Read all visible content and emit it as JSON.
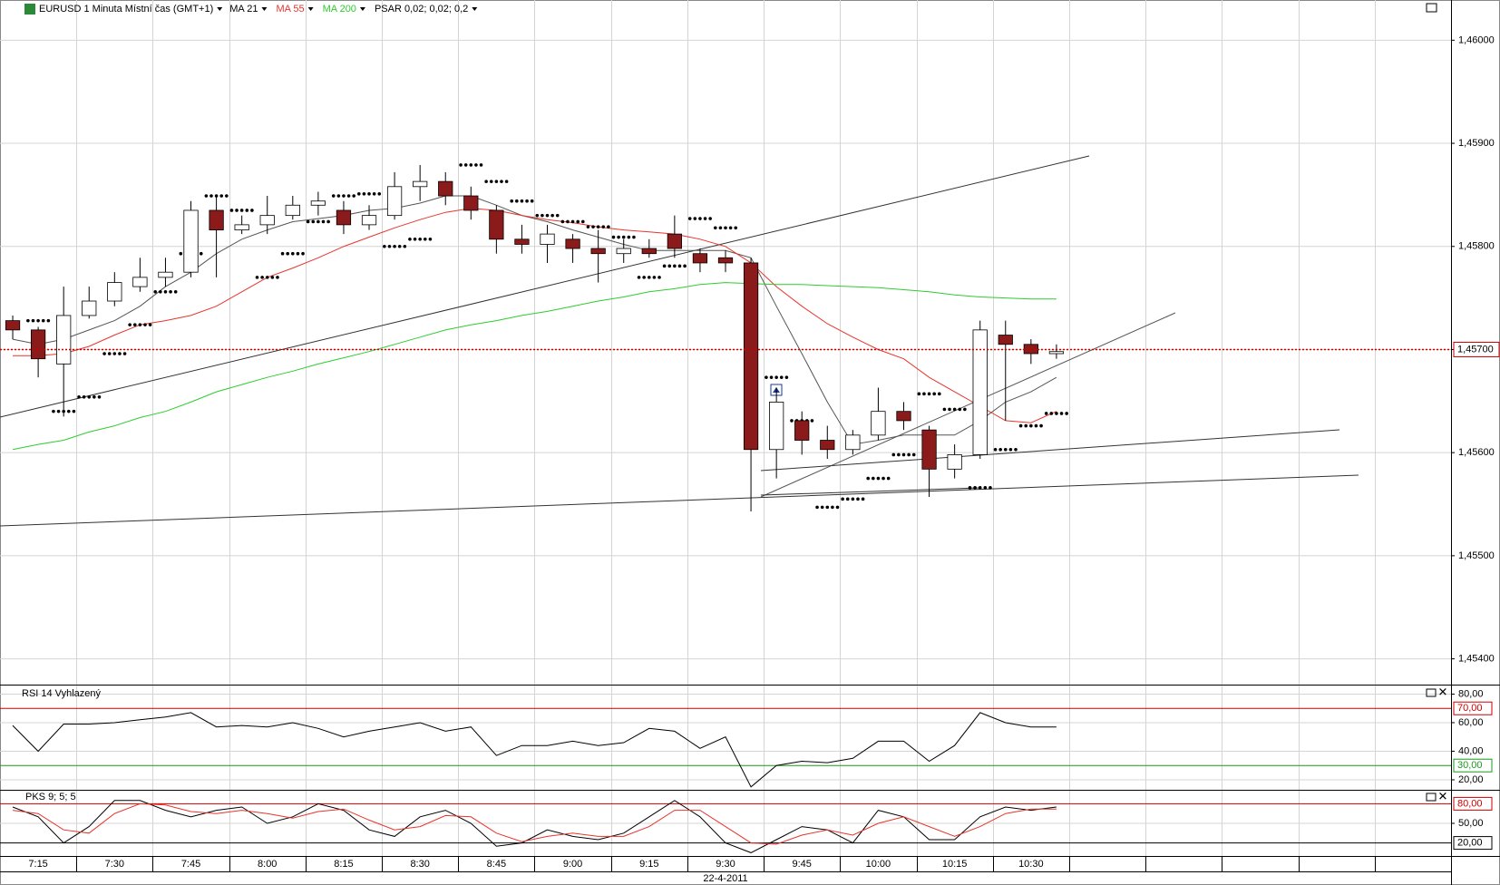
{
  "chart_data": [
    {
      "type": "candlestick",
      "title": "EURUSD 1 Minuta Místní čas (GMT+1)",
      "date_label": "22-4-2011",
      "categories": [
        null,
        "7:15",
        null,
        null,
        "7:30",
        null,
        null,
        "7:45",
        null,
        null,
        "8:00",
        null,
        null,
        "8:15",
        null,
        null,
        "8:30",
        null,
        null,
        "8:45",
        null,
        null,
        "9:00",
        null,
        null,
        "9:15",
        null,
        null,
        "9:30",
        null,
        null,
        "9:45",
        null,
        null,
        "10:00",
        null,
        null,
        "10:15",
        null,
        null,
        "10:30",
        null
      ],
      "open": [
        1.45728,
        1.45719,
        1.45686,
        1.45733,
        1.45747,
        1.45761,
        1.4577,
        1.45775,
        1.45835,
        1.45816,
        1.45821,
        1.4583,
        1.4584,
        1.45835,
        1.45821,
        1.4583,
        1.45858,
        1.45863,
        1.45849,
        1.45835,
        1.45807,
        1.45802,
        1.45807,
        1.45798,
        1.45793,
        1.45798,
        1.45812,
        1.45793,
        1.45789,
        1.45784,
        1.45603,
        1.45631,
        1.45612,
        1.45603,
        1.45617,
        1.4564,
        1.45622,
        1.45584,
        1.45598,
        1.45714,
        1.45705,
        1.45696
      ],
      "high": [
        1.45733,
        1.45722,
        1.45761,
        1.45761,
        1.45775,
        1.45789,
        1.45789,
        1.45844,
        1.45849,
        1.4583,
        1.45849,
        1.45849,
        1.45853,
        1.45844,
        1.4584,
        1.45872,
        1.45879,
        1.45872,
        1.45858,
        1.4584,
        1.45821,
        1.45821,
        1.45812,
        1.45816,
        1.45807,
        1.45807,
        1.4583,
        1.45798,
        1.45796,
        1.45789,
        1.45663,
        1.4564,
        1.45626,
        1.45622,
        1.45663,
        1.45649,
        1.45626,
        1.45608,
        1.45728,
        1.45728,
        1.4571,
        1.45705
      ],
      "low": [
        1.4571,
        1.45673,
        1.45635,
        1.4573,
        1.45742,
        1.45756,
        1.45761,
        1.4577,
        1.4577,
        1.45812,
        1.45812,
        1.45826,
        1.4583,
        1.45812,
        1.45816,
        1.45826,
        1.45844,
        1.4584,
        1.45826,
        1.45793,
        1.45793,
        1.45784,
        1.45784,
        1.45765,
        1.45784,
        1.45789,
        1.45789,
        1.45775,
        1.45775,
        1.45543,
        1.45575,
        1.45598,
        1.45594,
        1.45598,
        1.45612,
        1.45622,
        1.45557,
        1.45575,
        1.45594,
        1.45631,
        1.45686,
        1.45691
      ],
      "close": [
        1.45719,
        1.45691,
        1.45733,
        1.45747,
        1.45765,
        1.4577,
        1.45775,
        1.45835,
        1.45816,
        1.45821,
        1.4583,
        1.4584,
        1.45844,
        1.45821,
        1.4583,
        1.45858,
        1.45863,
        1.45849,
        1.45835,
        1.45807,
        1.45802,
        1.45812,
        1.45798,
        1.45793,
        1.45798,
        1.45793,
        1.45798,
        1.45784,
        1.45784,
        1.45603,
        1.45649,
        1.45612,
        1.45603,
        1.45617,
        1.4564,
        1.45631,
        1.45584,
        1.45598,
        1.45719,
        1.45705,
        1.45696,
        1.45698
      ],
      "up_color": "#ffffff",
      "down_color": "#8b1a1a",
      "series": [
        {
          "name": "MA 21",
          "color": "#555555",
          "style": "line",
          "values": [
            1.4571,
            1.45705,
            1.4571,
            1.45719,
            1.45728,
            1.45742,
            1.45761,
            1.45775,
            1.45793,
            1.45807,
            1.45816,
            1.45824,
            1.45827,
            1.4583,
            1.45835,
            1.45837,
            1.45842,
            1.45849,
            1.45849,
            1.4584,
            1.4583,
            1.45824,
            1.45816,
            1.45809,
            1.45802,
            1.45796,
            1.45796,
            1.45796,
            1.45796,
            1.45789,
            1.45742,
            1.45696,
            1.45649,
            1.45608,
            1.45612,
            1.45617,
            1.45617,
            1.45617,
            1.45631,
            1.45649,
            1.45659,
            1.45673
          ]
        },
        {
          "name": "MA 55",
          "color": "#e8342c",
          "style": "line",
          "values": [
            1.45694,
            1.45694,
            1.45696,
            1.45703,
            1.45714,
            1.45724,
            1.45728,
            1.45733,
            1.45742,
            1.45756,
            1.4577,
            1.45779,
            1.45789,
            1.458,
            1.45809,
            1.45818,
            1.45826,
            1.45833,
            1.45837,
            1.45835,
            1.4583,
            1.45826,
            1.45823,
            1.45819,
            1.45816,
            1.45814,
            1.45812,
            1.45807,
            1.458,
            1.45784,
            1.45761,
            1.45742,
            1.45725,
            1.45712,
            1.457,
            1.45691,
            1.45673,
            1.45659,
            1.45645,
            1.45631,
            1.45629,
            1.4564
          ]
        },
        {
          "name": "MA 200",
          "color": "#2ecc2e",
          "style": "line",
          "values": [
            1.45603,
            1.45608,
            1.45612,
            1.4562,
            1.45626,
            1.45634,
            1.4564,
            1.45649,
            1.45659,
            1.45666,
            1.45673,
            1.45679,
            1.45686,
            1.45692,
            1.45698,
            1.45705,
            1.45712,
            1.45719,
            1.45724,
            1.45728,
            1.45733,
            1.45737,
            1.45742,
            1.45747,
            1.45751,
            1.45756,
            1.45759,
            1.45763,
            1.45765,
            1.45764,
            1.45763,
            1.45763,
            1.45762,
            1.45761,
            1.4576,
            1.45758,
            1.45756,
            1.45753,
            1.45751,
            1.4575,
            1.45749,
            1.45749
          ]
        },
        {
          "name": "PSAR 0,02; 0,02; 0,2",
          "color": "#000000",
          "style": "dots",
          "values": [
            null,
            1.45728,
            1.4564,
            1.45654,
            1.45696,
            1.45724,
            1.45756,
            1.45793,
            1.45849,
            1.45835,
            1.4577,
            1.45793,
            1.45824,
            1.45849,
            1.45851,
            1.458,
            1.45807,
            null,
            1.45879,
            1.45863,
            1.45844,
            1.4583,
            1.45824,
            1.45819,
            1.45809,
            1.4577,
            1.45781,
            1.45827,
            1.45818,
            null,
            1.45673,
            1.45631,
            1.45547,
            1.45555,
            1.45575,
            1.45598,
            1.45657,
            1.45642,
            1.45566,
            1.45603,
            1.45626,
            1.45638
          ]
        }
      ],
      "last_price": {
        "value": 1.457,
        "label": "1,45700",
        "color": "#cc0000"
      },
      "ylim": [
        1.45375,
        1.46039
      ],
      "yticks": [
        {
          "value": 1.454,
          "label": "1,45400"
        },
        {
          "value": 1.455,
          "label": "1,45500"
        },
        {
          "value": 1.456,
          "label": "1,45600"
        },
        {
          "value": 1.457,
          "label": "1,45700"
        },
        {
          "value": 1.458,
          "label": "1,45800"
        },
        {
          "value": 1.459,
          "label": "1,45900"
        },
        {
          "value": 1.46,
          "label": "1,46000"
        }
      ]
    },
    {
      "type": "line",
      "title": "RSI 14 Vyhlazený",
      "series": [
        {
          "color": "#000000",
          "values": [
            58,
            40,
            59,
            59,
            60,
            62,
            64,
            67,
            57,
            58,
            57,
            60,
            56,
            50,
            54,
            57,
            60,
            54,
            57,
            37,
            44,
            44,
            47,
            44,
            46,
            56,
            54,
            42,
            50,
            15,
            30,
            33,
            32,
            35,
            47,
            47,
            33,
            44,
            67,
            60,
            57,
            57
          ]
        }
      ],
      "levels": [
        {
          "value": 70,
          "label": "70,00",
          "color": "#cc0000"
        },
        {
          "value": 30,
          "label": "30,00",
          "color": "#1a9a1a"
        }
      ],
      "ylim": [
        13,
        86
      ],
      "yticks": [
        {
          "value": 20,
          "label": "20,00"
        },
        {
          "value": 40,
          "label": "40,00"
        },
        {
          "value": 60,
          "label": "60,00"
        },
        {
          "value": 80,
          "label": "80,00"
        }
      ]
    },
    {
      "type": "line",
      "title": "PKS 9; 5; 5",
      "series": [
        {
          "color": "#000000",
          "values": [
            75,
            60,
            20,
            45,
            85,
            85,
            70,
            60,
            70,
            75,
            50,
            60,
            80,
            70,
            40,
            30,
            60,
            70,
            50,
            15,
            20,
            40,
            30,
            25,
            35,
            60,
            85,
            60,
            20,
            5,
            25,
            45,
            40,
            20,
            70,
            60,
            25,
            25,
            60,
            75,
            70,
            75
          ]
        },
        {
          "color": "#e8342c",
          "values": [
            70,
            65,
            40,
            35,
            65,
            80,
            78,
            68,
            65,
            70,
            65,
            58,
            68,
            72,
            55,
            40,
            45,
            62,
            60,
            35,
            22,
            30,
            35,
            30,
            30,
            45,
            70,
            70,
            45,
            20,
            18,
            32,
            40,
            32,
            50,
            60,
            45,
            30,
            45,
            65,
            72,
            72
          ]
        }
      ],
      "levels": [
        {
          "value": 80,
          "label": "80,00",
          "color": "#cc0000"
        },
        {
          "value": 20,
          "label": "20,00",
          "color": "#000000"
        }
      ],
      "ylim": [
        0,
        100
      ],
      "yticks": [
        {
          "value": 50,
          "label": "50,00"
        }
      ]
    }
  ]
}
